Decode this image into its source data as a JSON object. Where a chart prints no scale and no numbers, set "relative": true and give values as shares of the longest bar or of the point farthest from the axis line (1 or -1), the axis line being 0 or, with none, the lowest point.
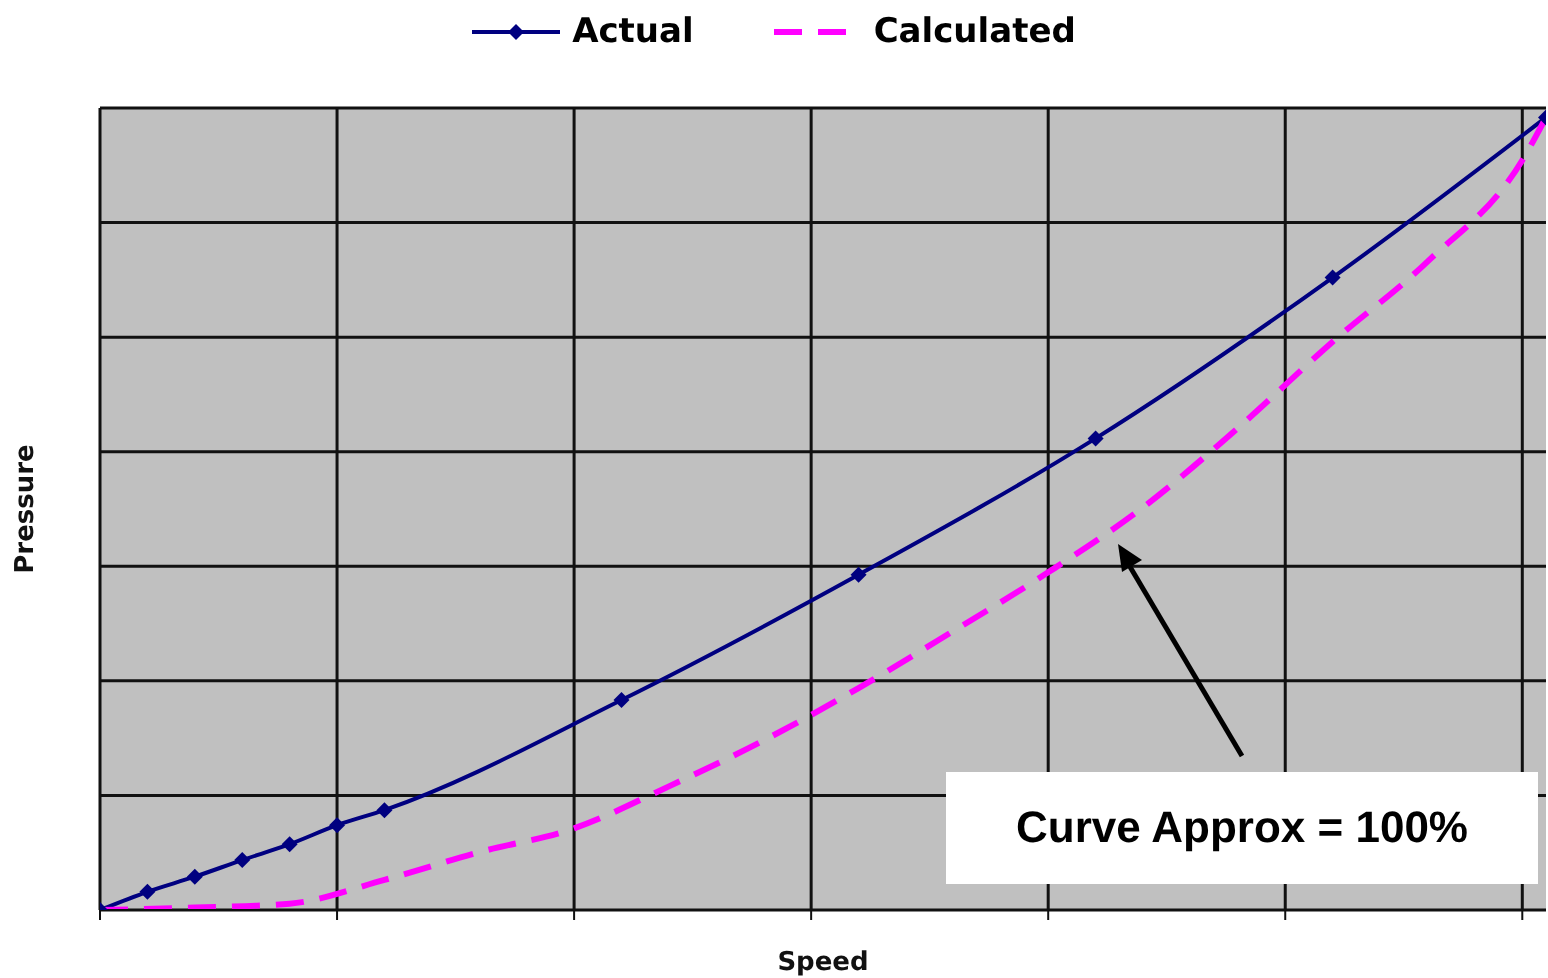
{
  "chart_data": {
    "type": "line",
    "relative": true,
    "xlabel": "Speed",
    "ylabel": "Pressure",
    "categories": [
      null,
      null,
      null,
      null,
      null,
      null,
      null,
      null,
      null,
      null,
      null,
      null,
      null,
      null,
      null,
      null,
      null,
      null,
      null,
      null,
      null,
      null,
      null,
      null,
      null,
      null,
      null,
      null,
      null,
      null,
      null,
      null,
      null,
      null,
      null,
      null,
      null,
      null,
      null,
      null,
      null,
      null,
      null,
      null,
      null,
      null,
      null,
      null,
      null,
      null,
      null,
      null,
      null,
      null,
      null,
      null,
      null,
      null,
      null,
      null,
      null,
      null
    ],
    "series": [
      {
        "name": "Actual",
        "color": "#000080",
        "marker": "diamond",
        "line_style": "solid",
        "values": [
          0,
          null,
          0.023,
          null,
          0.042,
          null,
          0.063,
          null,
          0.083,
          null,
          0.107,
          null,
          0.126,
          null,
          null,
          null,
          null,
          null,
          null,
          null,
          null,
          null,
          0.265,
          null,
          null,
          null,
          null,
          null,
          null,
          null,
          null,
          null,
          0.423,
          null,
          null,
          null,
          null,
          null,
          null,
          null,
          null,
          null,
          0.595,
          null,
          null,
          null,
          null,
          null,
          null,
          null,
          null,
          null,
          0.798,
          null,
          null,
          null,
          null,
          null,
          null,
          null,
          null,
          1
        ]
      },
      {
        "name": "Calculated",
        "color": "#ff00ff",
        "marker": "none",
        "line_style": "dashed",
        "values": [
          0,
          null,
          null,
          null,
          0.003,
          null,
          null,
          null,
          0.008,
          null,
          null,
          null,
          0.038,
          null,
          null,
          null,
          0.073,
          null,
          null,
          null,
          0.103,
          null,
          null,
          null,
          0.156,
          null,
          null,
          null,
          0.214,
          null,
          null,
          null,
          0.28,
          null,
          null,
          null,
          0.352,
          null,
          null,
          null,
          0.426,
          null,
          null,
          null,
          0.508,
          null,
          null,
          null,
          0.608,
          null,
          null,
          null,
          0.717,
          null,
          null,
          null,
          0.818,
          null,
          null,
          null,
          0.946,
          1
        ]
      }
    ],
    "grid": true,
    "legend": "top",
    "annotations": [
      "Curve Approx = 100%"
    ]
  }
}
